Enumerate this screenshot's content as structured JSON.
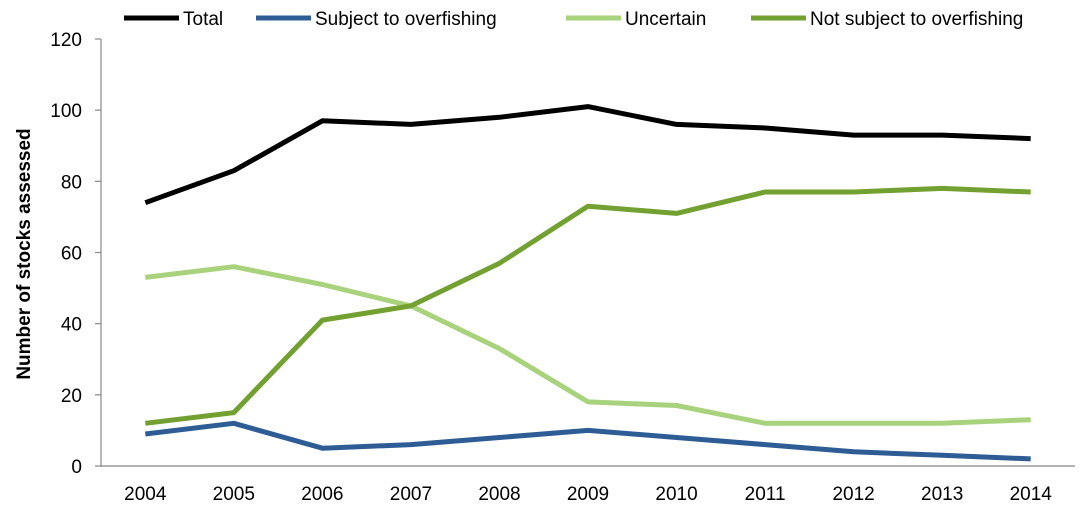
{
  "chart_data": {
    "type": "line",
    "title": "",
    "xlabel": "",
    "ylabel": "Number of stocks assessed",
    "ylim": [
      0,
      120
    ],
    "yticks": [
      "0",
      "20",
      "40",
      "60",
      "80",
      "100",
      "120"
    ],
    "categories": [
      "2004",
      "2005",
      "2006",
      "2007",
      "2008",
      "2009",
      "2010",
      "2011",
      "2012",
      "2013",
      "2014"
    ],
    "grid": false,
    "legend_position": "top",
    "series": [
      {
        "name": "Total",
        "color": "#000000",
        "values": [
          74,
          83,
          97,
          96,
          98,
          101,
          96,
          95,
          93,
          93,
          92
        ]
      },
      {
        "name": "Subject to overfishing",
        "color": "#2E5D95",
        "values": [
          9,
          12,
          5,
          6,
          8,
          10,
          8,
          6,
          4,
          3,
          2
        ]
      },
      {
        "name": "Uncertain",
        "color": "#A9D27D",
        "values": [
          53,
          56,
          51,
          45,
          33,
          18,
          17,
          12,
          12,
          12,
          13
        ]
      },
      {
        "name": "Not subject to overfishing",
        "color": "#72A132",
        "values": [
          12,
          15,
          41,
          45,
          57,
          73,
          71,
          77,
          77,
          78,
          77
        ]
      }
    ]
  }
}
